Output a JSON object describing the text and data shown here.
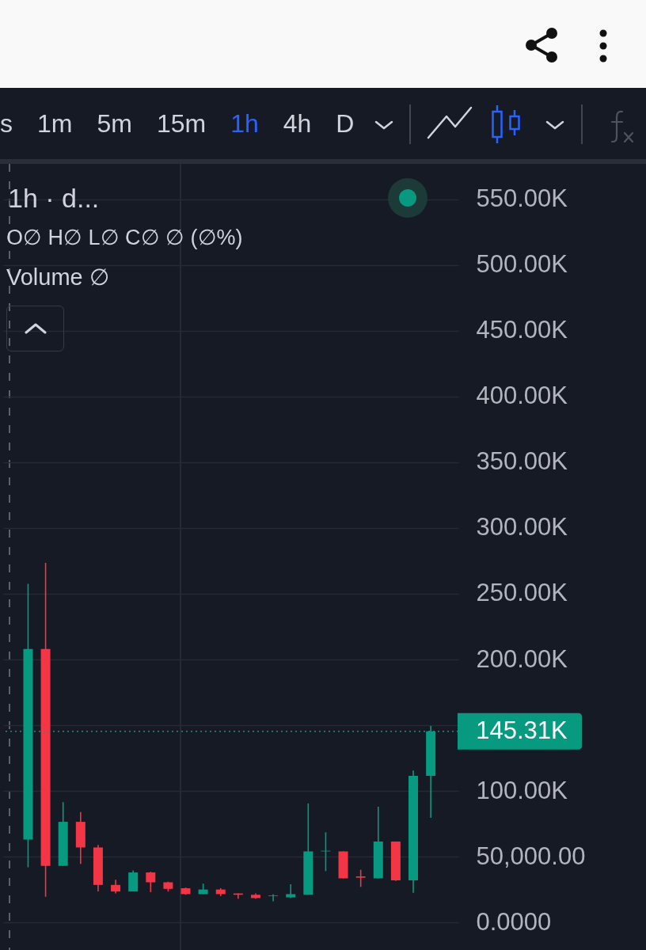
{
  "chart_data": {
    "type": "candlestick",
    "title": "1h · d...",
    "annotations": [
      "s",
      "1m",
      "5m",
      "15m",
      "1h",
      "4h",
      "D",
      "O∅ H∅ L∅ C∅ ∅ (∅%)",
      "Volume ∅"
    ],
    "categories": [
      null,
      null,
      null,
      null,
      null,
      null,
      null,
      null,
      null,
      null,
      null,
      null,
      null,
      null,
      null,
      null,
      null,
      null,
      null,
      null,
      null,
      null,
      null,
      null
    ],
    "ohlc": [
      [
        63000,
        257500,
        42000,
        208000
      ],
      [
        208000,
        273500,
        19500,
        43000
      ],
      [
        43000,
        91500,
        43000,
        76500
      ],
      [
        76500,
        84000,
        44500,
        57000
      ],
      [
        57000,
        59000,
        23500,
        28500
      ],
      [
        28500,
        32500,
        22000,
        23500
      ],
      [
        23500,
        39500,
        23500,
        38000
      ],
      [
        38000,
        38500,
        23000,
        30500
      ],
      [
        30500,
        31000,
        23500,
        25500
      ],
      [
        26000,
        26500,
        21000,
        21500
      ],
      [
        21500,
        29500,
        21500,
        25000
      ],
      [
        25000,
        26000,
        20000,
        21500
      ],
      [
        22000,
        22000,
        18000,
        21000
      ],
      [
        21000,
        22000,
        18000,
        18500
      ],
      [
        20000,
        21500,
        16000,
        20500
      ],
      [
        19000,
        29000,
        18500,
        21500
      ],
      [
        21000,
        90500,
        21000,
        54000
      ],
      [
        54000,
        68500,
        39000,
        54500
      ],
      [
        54000,
        54000,
        33500,
        33500
      ],
      [
        35000,
        40000,
        27000,
        34000
      ],
      [
        33500,
        88000,
        33500,
        61500
      ],
      [
        61500,
        61500,
        31500,
        32000
      ],
      [
        32000,
        115500,
        22500,
        111500
      ],
      [
        111500,
        149500,
        79500,
        145310
      ]
    ],
    "colors": [
      "#089981",
      "#f23645",
      "#089981",
      "#f23645",
      "#f23645",
      "#f23645",
      "#089981",
      "#f23645",
      "#f23645",
      "#f23645",
      "#089981",
      "#f23645",
      "#f23645",
      "#f23645",
      "#089981",
      "#089981",
      "#089981",
      "#089981",
      "#f23645",
      "#f23645",
      "#089981",
      "#f23645",
      "#089981",
      "#089981"
    ],
    "ylim": [
      -21000,
      577000
    ],
    "yticks": [
      {
        "value": 0,
        "label": "0.0000"
      },
      {
        "value": 50000,
        "label": "50,000.00"
      },
      {
        "value": 100000,
        "label": "100.00K"
      },
      {
        "value": 150000,
        "label": null
      },
      {
        "value": 200000,
        "label": "200.00K"
      },
      {
        "value": 250000,
        "label": "250.00K"
      },
      {
        "value": 300000,
        "label": "300.00K"
      },
      {
        "value": 350000,
        "label": "350.00K"
      },
      {
        "value": 400000,
        "label": "400.00K"
      },
      {
        "value": 450000,
        "label": "450.00K"
      },
      {
        "value": 500000,
        "label": "500.00K"
      },
      {
        "value": 550000,
        "label": "550.00K"
      }
    ],
    "ref_lines": [
      {
        "axis": "y",
        "value": 145310,
        "label": "145.31K",
        "color": "#089981",
        "line_style": "dotted"
      }
    ],
    "grid": "y",
    "tick_labels": "y"
  }
}
